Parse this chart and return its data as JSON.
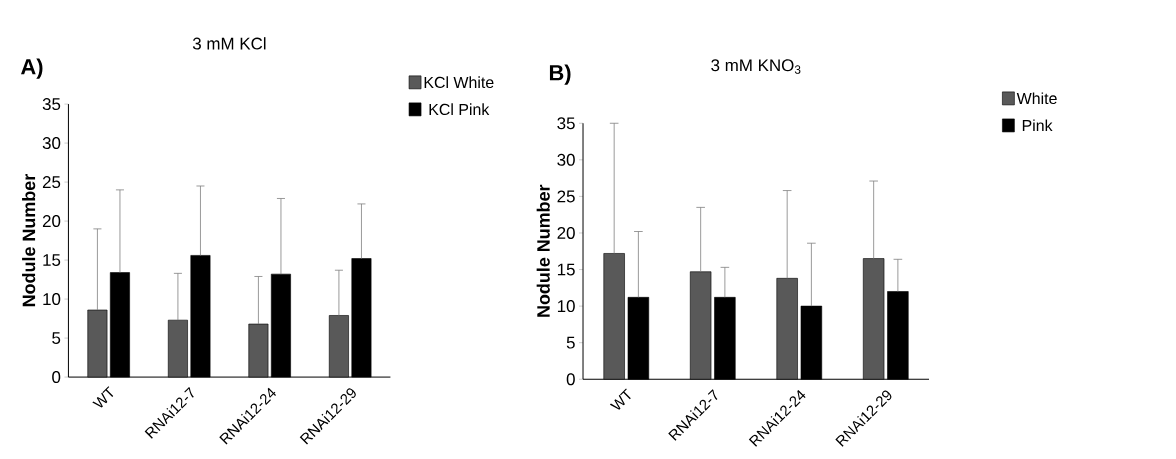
{
  "chart_data": [
    {
      "type": "bar",
      "title": "3 mM KCl",
      "annotations": [
        "A)"
      ],
      "ylabel": "Nodule Number",
      "categories": [
        "WT",
        "RNAi12-7",
        "RNAi12-24",
        "RNAi12-29"
      ],
      "ylim": [
        0,
        35
      ],
      "yticks": [
        0,
        5,
        10,
        15,
        20,
        25,
        30,
        35
      ],
      "legend": "top right",
      "series": [
        {
          "name": "KCl White",
          "color": "#595959",
          "values": [
            8.6,
            7.3,
            6.8,
            7.9
          ],
          "errors": [
            [
              8.6,
              19.0
            ],
            [
              7.3,
              13.3
            ],
            [
              6.8,
              12.9
            ],
            [
              7.9,
              13.7
            ]
          ]
        },
        {
          "name": "KCl Pink",
          "color": "#000000",
          "values": [
            13.4,
            15.6,
            13.2,
            15.2
          ],
          "errors": [
            [
              13.4,
              24.0
            ],
            [
              15.6,
              24.5
            ],
            [
              13.2,
              22.9
            ],
            [
              15.2,
              22.2
            ]
          ]
        }
      ]
    },
    {
      "type": "bar",
      "title": "3 mM KNO$_{3}$",
      "annotations": [
        "B)"
      ],
      "ylabel": "Nodule Number",
      "categories": [
        "WT",
        "RNAi12-7",
        "RNAi12-24",
        "RNAi12-29"
      ],
      "ylim": [
        0,
        35
      ],
      "yticks": [
        0,
        5,
        10,
        15,
        20,
        25,
        30,
        35
      ],
      "legend": "top right",
      "series": [
        {
          "name": "White",
          "color": "#595959",
          "values": [
            17.2,
            14.7,
            13.8,
            16.5
          ],
          "errors": [
            [
              17.2,
              35.0
            ],
            [
              14.7,
              23.5
            ],
            [
              13.8,
              25.8
            ],
            [
              16.5,
              27.1
            ]
          ]
        },
        {
          "name": "Pink",
          "color": "#000000",
          "values": [
            11.2,
            11.2,
            10.0,
            12.0
          ],
          "errors": [
            [
              11.2,
              20.2
            ],
            [
              11.2,
              15.3
            ],
            [
              10.0,
              18.6
            ],
            [
              12.0,
              16.4
            ]
          ]
        }
      ]
    }
  ]
}
